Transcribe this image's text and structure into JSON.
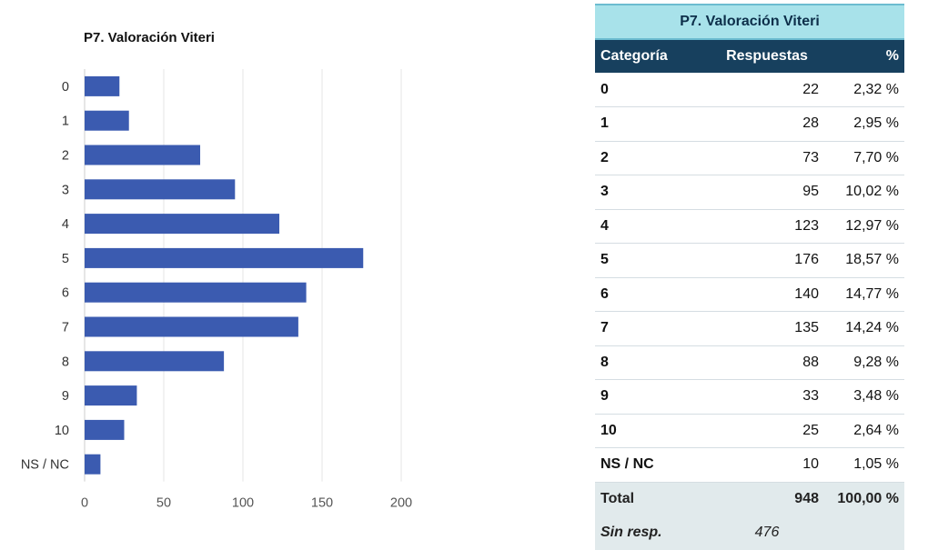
{
  "chart_data": {
    "type": "bar",
    "orientation": "horizontal",
    "title": "P7. Valoración Viteri",
    "categories": [
      "0",
      "1",
      "2",
      "3",
      "4",
      "5",
      "6",
      "7",
      "8",
      "9",
      "10",
      "NS / NC"
    ],
    "values": [
      22,
      28,
      73,
      95,
      123,
      176,
      140,
      135,
      88,
      33,
      25,
      10
    ],
    "xlim": [
      0,
      200
    ],
    "xticks": [
      0,
      50,
      100,
      150,
      200
    ],
    "grid": true,
    "colors": {
      "bar": "#3b5bb0",
      "grid": "#e5e5e5",
      "axis": "#cccccc"
    }
  },
  "table": {
    "title": "P7. Valoración Viteri",
    "headers": [
      "Categoría",
      "Respuestas",
      "%"
    ],
    "rows": [
      {
        "cat": "0",
        "resp": "22",
        "pct": "2,32 %"
      },
      {
        "cat": "1",
        "resp": "28",
        "pct": "2,95 %"
      },
      {
        "cat": "2",
        "resp": "73",
        "pct": "7,70 %"
      },
      {
        "cat": "3",
        "resp": "95",
        "pct": "10,02 %"
      },
      {
        "cat": "4",
        "resp": "123",
        "pct": "12,97 %"
      },
      {
        "cat": "5",
        "resp": "176",
        "pct": "18,57 %"
      },
      {
        "cat": "6",
        "resp": "140",
        "pct": "14,77 %"
      },
      {
        "cat": "7",
        "resp": "135",
        "pct": "14,24 %"
      },
      {
        "cat": "8",
        "resp": "88",
        "pct": "9,28 %"
      },
      {
        "cat": "9",
        "resp": "33",
        "pct": "3,48 %"
      },
      {
        "cat": "10",
        "resp": "25",
        "pct": "2,64 %"
      },
      {
        "cat": "NS / NC",
        "resp": "10",
        "pct": "1,05 %"
      }
    ],
    "total": {
      "label": "Total",
      "resp": "948",
      "pct": "100,00 %"
    },
    "sin_resp": {
      "label": "Sin resp.",
      "resp": "476"
    },
    "colors": {
      "title_bg": "#a8e2ea",
      "header_bg": "#17405e",
      "total_bg": "#e1eaec"
    }
  }
}
